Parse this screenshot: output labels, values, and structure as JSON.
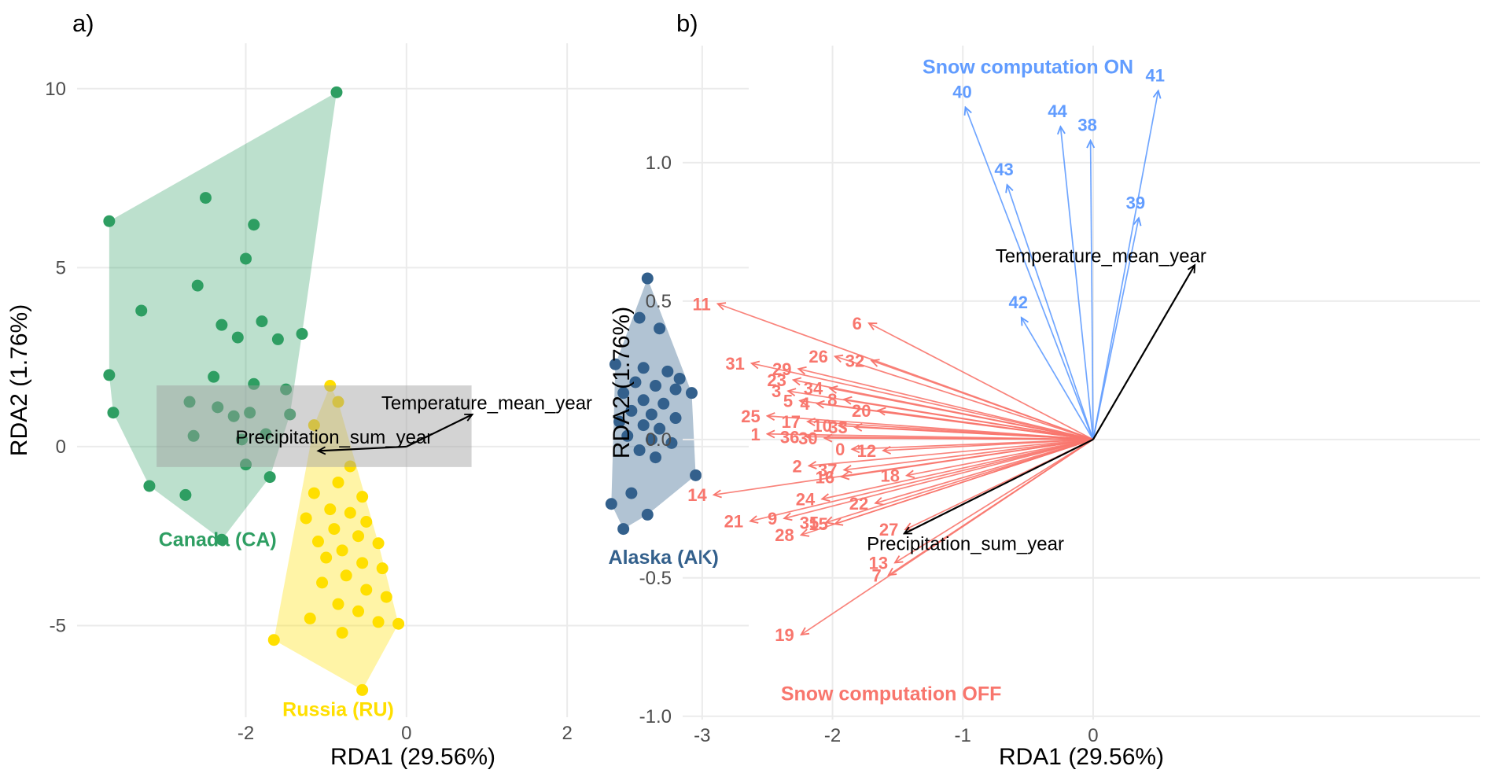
{
  "figure": {
    "background": "#ffffff"
  },
  "chart_data": [
    {
      "id": "a",
      "type": "scatter-biplot",
      "panel_label": "a)",
      "xlabel": "RDA1 (29.56%)",
      "ylabel": "RDA2 (1.76%)",
      "xlim": [
        -4.1,
        4.26
      ],
      "ylim": [
        -7.56,
        11.27
      ],
      "grid": true,
      "xticks": [
        {
          "v": -2,
          "label": "-2"
        },
        {
          "v": 0,
          "label": "0"
        },
        {
          "v": 2,
          "label": "2"
        }
      ],
      "yticks": [
        {
          "v": -5,
          "label": "-5"
        },
        {
          "v": 0,
          "label": "0"
        },
        {
          "v": 5,
          "label": "5"
        },
        {
          "v": 10,
          "label": "10"
        }
      ],
      "groups": [
        {
          "name": "Canada (CA)",
          "color": "#2e9e62",
          "hull_opacity": 0.32,
          "label_pos": [
            -2.35,
            -2.6
          ],
          "points": [
            [
              -0.87,
              9.9
            ],
            [
              -3.7,
              6.3
            ],
            [
              -2.5,
              6.95
            ],
            [
              -1.9,
              6.2
            ],
            [
              -2.0,
              5.25
            ],
            [
              -2.6,
              4.5
            ],
            [
              -3.3,
              3.8
            ],
            [
              -2.3,
              3.4
            ],
            [
              -1.8,
              3.5
            ],
            [
              -2.1,
              3.05
            ],
            [
              -1.6,
              3.0
            ],
            [
              -1.3,
              3.15
            ],
            [
              -3.7,
              2.0
            ],
            [
              -2.4,
              1.95
            ],
            [
              -1.9,
              1.75
            ],
            [
              -1.5,
              1.6
            ],
            [
              -3.65,
              0.95
            ],
            [
              -2.7,
              1.25
            ],
            [
              -2.35,
              1.1
            ],
            [
              -2.15,
              0.85
            ],
            [
              -1.95,
              0.95
            ],
            [
              -2.65,
              0.3
            ],
            [
              -2.05,
              0.2
            ],
            [
              -1.75,
              0.35
            ],
            [
              -1.45,
              0.9
            ],
            [
              -2.0,
              -0.5
            ],
            [
              -1.7,
              -0.85
            ],
            [
              -3.2,
              -1.1
            ],
            [
              -2.75,
              -1.35
            ],
            [
              -2.3,
              -2.6
            ]
          ]
        },
        {
          "name": "Russia (RU)",
          "color": "#ffdf00",
          "hull_opacity": 0.35,
          "label_pos": [
            -0.85,
            -7.35
          ],
          "points": [
            [
              -0.95,
              1.7
            ],
            [
              -0.85,
              1.25
            ],
            [
              -1.15,
              0.6
            ],
            [
              -0.7,
              -0.55
            ],
            [
              -0.85,
              -1.0
            ],
            [
              -1.15,
              -1.3
            ],
            [
              -0.55,
              -1.4
            ],
            [
              -0.95,
              -1.75
            ],
            [
              -0.7,
              -1.85
            ],
            [
              -1.25,
              -2.0
            ],
            [
              -0.5,
              -2.1
            ],
            [
              -0.9,
              -2.3
            ],
            [
              -0.6,
              -2.5
            ],
            [
              -1.1,
              -2.65
            ],
            [
              -0.35,
              -2.7
            ],
            [
              -0.8,
              -2.9
            ],
            [
              -1.0,
              -3.1
            ],
            [
              -0.55,
              -3.25
            ],
            [
              -0.3,
              -3.4
            ],
            [
              -0.75,
              -3.6
            ],
            [
              -1.05,
              -3.8
            ],
            [
              -0.5,
              -4.0
            ],
            [
              -0.25,
              -4.2
            ],
            [
              -0.85,
              -4.4
            ],
            [
              -0.6,
              -4.6
            ],
            [
              -1.2,
              -4.8
            ],
            [
              -0.35,
              -4.9
            ],
            [
              -0.1,
              -4.95
            ],
            [
              -0.8,
              -5.2
            ],
            [
              -1.65,
              -5.4
            ],
            [
              -0.55,
              -6.8
            ]
          ]
        },
        {
          "name": "Alaska (AK)",
          "color": "#33608c",
          "hull_opacity": 0.38,
          "label_pos": [
            3.2,
            -3.1
          ],
          "points": [
            [
              3.0,
              4.7
            ],
            [
              2.9,
              3.6
            ],
            [
              3.15,
              3.3
            ],
            [
              2.6,
              2.3
            ],
            [
              2.95,
              2.2
            ],
            [
              3.25,
              2.1
            ],
            [
              3.4,
              1.9
            ],
            [
              2.85,
              1.8
            ],
            [
              3.1,
              1.7
            ],
            [
              3.35,
              1.6
            ],
            [
              2.7,
              1.5
            ],
            [
              3.55,
              1.5
            ],
            [
              2.95,
              1.3
            ],
            [
              3.2,
              1.2
            ],
            [
              2.8,
              1.0
            ],
            [
              3.05,
              0.9
            ],
            [
              3.35,
              0.8
            ],
            [
              2.65,
              0.7
            ],
            [
              2.95,
              0.6
            ],
            [
              3.15,
              0.5
            ],
            [
              2.75,
              0.3
            ],
            [
              3.05,
              0.2
            ],
            [
              3.3,
              0.1
            ],
            [
              2.9,
              -0.1
            ],
            [
              3.1,
              -0.3
            ],
            [
              3.6,
              -0.8
            ],
            [
              2.8,
              -1.3
            ],
            [
              2.55,
              -1.6
            ],
            [
              3.0,
              -1.9
            ],
            [
              2.7,
              -2.3
            ]
          ]
        }
      ],
      "label_box": {
        "x": [
          -3.11,
          0.81
        ],
        "y": [
          -0.57,
          1.71
        ],
        "fill": "#9e9e9e",
        "opacity": 0.45
      },
      "env_arrows": [
        {
          "label": "Temperature_mean_year",
          "tip": [
            0.82,
            0.9
          ],
          "label_pos": [
            1.0,
            1.2
          ]
        },
        {
          "label": "Precipitation_sum_year",
          "tip": [
            -1.1,
            -0.12
          ],
          "label_pos": [
            -0.9,
            0.24
          ]
        }
      ]
    },
    {
      "id": "b",
      "type": "arrow-biplot",
      "panel_label": "b)",
      "xlabel": "RDA1 (29.56%)",
      "ylabel": "RDA2 (1.76%)",
      "xlim": [
        -3.15,
        2.97
      ],
      "ylim": [
        -1.012,
        1.423
      ],
      "grid": true,
      "xticks": [
        {
          "v": -3,
          "label": "-3"
        },
        {
          "v": -2,
          "label": "-2"
        },
        {
          "v": -1,
          "label": "-1"
        },
        {
          "v": 0,
          "label": "0"
        }
      ],
      "yticks": [
        {
          "v": -1.0,
          "label": "-1.0"
        },
        {
          "v": -0.5,
          "label": "-0.5"
        },
        {
          "v": 0.0,
          "label": "0.0"
        },
        {
          "v": 0.5,
          "label": "0.5"
        },
        {
          "v": 1.0,
          "label": "1.0"
        }
      ],
      "origin": [
        0,
        0
      ],
      "series": [
        {
          "name": "Snow computation ON",
          "color": "#619cff",
          "title_pos": [
            -0.5,
            1.345
          ],
          "arrows": [
            {
              "n": "40",
              "tip": [
                -0.98,
                1.2
              ]
            },
            {
              "n": "44",
              "tip": [
                -0.25,
                1.13
              ]
            },
            {
              "n": "38",
              "tip": [
                -0.02,
                1.08
              ]
            },
            {
              "n": "41",
              "tip": [
                0.5,
                1.26
              ]
            },
            {
              "n": "43",
              "tip": [
                -0.66,
                0.92
              ]
            },
            {
              "n": "39",
              "tip": [
                0.35,
                0.8
              ]
            },
            {
              "n": "42",
              "tip": [
                -0.55,
                0.44
              ]
            }
          ]
        },
        {
          "name": "Snow computation OFF",
          "color": "#f8766d",
          "title_pos": [
            -1.55,
            -0.92
          ],
          "arrows": [
            {
              "n": "11",
              "tip": [
                -2.88,
                0.49
              ]
            },
            {
              "n": "6",
              "tip": [
                -1.72,
                0.42
              ]
            },
            {
              "n": "31",
              "tip": [
                -2.62,
                0.275
              ]
            },
            {
              "n": "26",
              "tip": [
                -1.98,
                0.3
              ]
            },
            {
              "n": "32",
              "tip": [
                -1.7,
                0.285
              ]
            },
            {
              "n": "29",
              "tip": [
                -2.26,
                0.255
              ]
            },
            {
              "n": "23",
              "tip": [
                -2.3,
                0.215
              ]
            },
            {
              "n": "3",
              "tip": [
                -2.34,
                0.175
              ]
            },
            {
              "n": "34",
              "tip": [
                -2.02,
                0.185
              ]
            },
            {
              "n": "5",
              "tip": [
                -2.25,
                0.14
              ]
            },
            {
              "n": "4",
              "tip": [
                -2.12,
                0.13
              ]
            },
            {
              "n": "8",
              "tip": [
                -1.91,
                0.145
              ]
            },
            {
              "n": "20",
              "tip": [
                -1.65,
                0.105
              ]
            },
            {
              "n": "25",
              "tip": [
                -2.5,
                0.085
              ]
            },
            {
              "n": "17",
              "tip": [
                -2.19,
                0.065
              ]
            },
            {
              "n": "10",
              "tip": [
                -1.95,
                0.05
              ]
            },
            {
              "n": "33",
              "tip": [
                -1.83,
                0.045
              ]
            },
            {
              "n": "1",
              "tip": [
                -2.5,
                0.02
              ]
            },
            {
              "n": "36",
              "tip": [
                -2.2,
                0.01
              ]
            },
            {
              "n": "30",
              "tip": [
                -2.06,
                0.005
              ]
            },
            {
              "n": "0",
              "tip": [
                -1.85,
                -0.035
              ]
            },
            {
              "n": "12",
              "tip": [
                -1.61,
                -0.04
              ]
            },
            {
              "n": "2",
              "tip": [
                -2.18,
                -0.095
              ]
            },
            {
              "n": "37",
              "tip": [
                -1.91,
                -0.11
              ]
            },
            {
              "n": "16",
              "tip": [
                -1.93,
                -0.135
              ]
            },
            {
              "n": "18",
              "tip": [
                -1.43,
                -0.13
              ]
            },
            {
              "n": "14",
              "tip": [
                -2.91,
                -0.2
              ]
            },
            {
              "n": "24",
              "tip": [
                -2.08,
                -0.215
              ]
            },
            {
              "n": "22",
              "tip": [
                -1.67,
                -0.23
              ]
            },
            {
              "n": "21",
              "tip": [
                -2.63,
                -0.295
              ]
            },
            {
              "n": "9",
              "tip": [
                -2.37,
                -0.285
              ]
            },
            {
              "n": "35",
              "tip": [
                -2.05,
                -0.3
              ]
            },
            {
              "n": "15",
              "tip": [
                -1.98,
                -0.305
              ]
            },
            {
              "n": "28",
              "tip": [
                -2.24,
                -0.345
              ]
            },
            {
              "n": "27",
              "tip": [
                -1.44,
                -0.325
              ]
            },
            {
              "n": "13",
              "tip": [
                -1.52,
                -0.445
              ]
            },
            {
              "n": "7",
              "tip": [
                -1.57,
                -0.49
              ]
            },
            {
              "n": "19",
              "tip": [
                -2.24,
                -0.705
              ]
            }
          ]
        }
      ],
      "env_arrows": [
        {
          "label": "Temperature_mean_year",
          "tip": [
            0.78,
            0.63
          ],
          "label_pos": [
            0.06,
            0.66
          ]
        },
        {
          "label": "Precipitation_sum_year",
          "tip": [
            -1.45,
            -0.34
          ],
          "label_pos": [
            -0.98,
            -0.38
          ]
        }
      ]
    }
  ],
  "style": {
    "tick_label_color": "#4d4d4d",
    "grid_color": "#ebebeb",
    "env_arrow_color": "#000000"
  }
}
